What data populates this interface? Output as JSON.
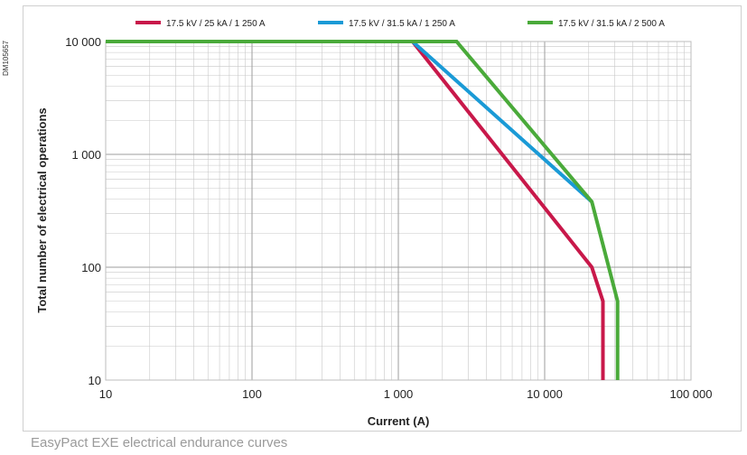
{
  "doc_code": "DM105657",
  "caption": "EasyPact EXE electrical endurance curves",
  "colors": {
    "series_1": "#c8184a",
    "series_2": "#1a9ad6",
    "series_3": "#4aaa3a",
    "grid": "#c8c8c8"
  },
  "chart_data": {
    "type": "line",
    "title": "",
    "xlabel": "Current (A)",
    "ylabel": "Total number of electrical operations",
    "x_scale": "log",
    "y_scale": "log",
    "xlim": [
      10,
      100000
    ],
    "ylim": [
      10,
      10000
    ],
    "x_ticks": [
      {
        "value": 10,
        "label": "10"
      },
      {
        "value": 100,
        "label": "100"
      },
      {
        "value": 1000,
        "label": "1 000"
      },
      {
        "value": 10000,
        "label": "10 000"
      },
      {
        "value": 100000,
        "label": "100 000"
      }
    ],
    "y_ticks": [
      {
        "value": 10,
        "label": "10"
      },
      {
        "value": 100,
        "label": "100"
      },
      {
        "value": 1000,
        "label": "1 000"
      },
      {
        "value": 10000,
        "label": "10 000"
      }
    ],
    "grid": true,
    "legend_position": "top",
    "series": [
      {
        "name": "17.5 kV / 25 kA / 1 250 A",
        "color": "#c8184a",
        "points": [
          [
            10,
            10000
          ],
          [
            1250,
            10000
          ],
          [
            21000,
            100
          ],
          [
            25000,
            50
          ],
          [
            25000,
            10
          ]
        ]
      },
      {
        "name": "17.5 kV / 31.5 kA / 1 250 A",
        "color": "#1a9ad6",
        "points": [
          [
            10,
            10000
          ],
          [
            1250,
            10000
          ],
          [
            21000,
            380
          ]
        ]
      },
      {
        "name": "17.5 kV / 31.5 kA / 2 500 A",
        "color": "#4aaa3a",
        "points": [
          [
            10,
            10000
          ],
          [
            2500,
            10000
          ],
          [
            21000,
            380
          ],
          [
            31500,
            50
          ],
          [
            31500,
            10
          ]
        ]
      }
    ]
  }
}
